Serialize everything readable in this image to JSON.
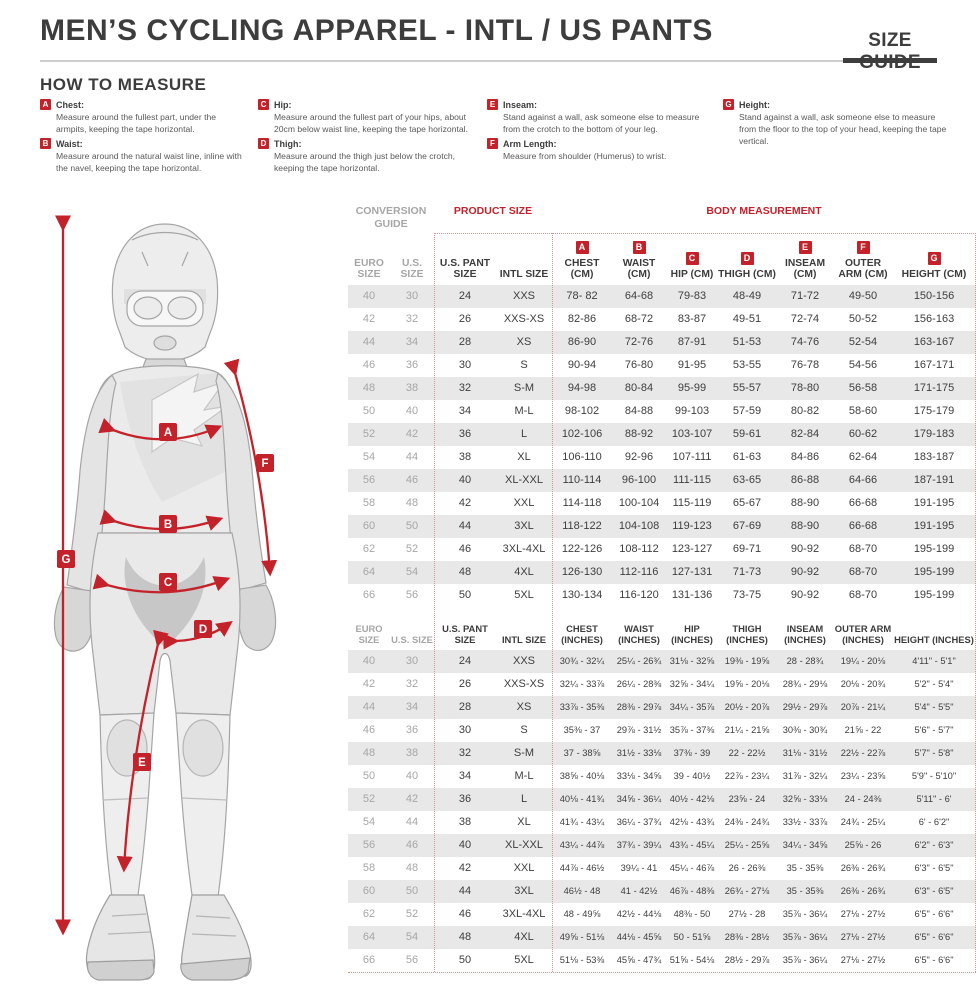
{
  "header": {
    "title": "MEN’S CYCLING APPAREL - INTL / US PANTS",
    "size_guide_label": "SIZE GUIDE"
  },
  "how_to_measure": {
    "title": "HOW TO MEASURE",
    "items": [
      {
        "letter": "A",
        "name": "Chest:",
        "text": "Measure around the fullest part, under the armpits, keeping the tape horizontal."
      },
      {
        "letter": "B",
        "name": "Waist:",
        "text": "Measure around the natural waist line, inline with the navel, keeping the tape horizontal."
      },
      {
        "letter": "C",
        "name": "Hip:",
        "text": "Measure around the fullest part of your hips, about 20cm below waist line, keeping the tape horizontal."
      },
      {
        "letter": "D",
        "name": "Thigh:",
        "text": "Measure around the thigh just below the crotch, keeping the tape horizontal."
      },
      {
        "letter": "E",
        "name": "Inseam:",
        "text": "Stand against a wall, ask someone else to measure from the crotch to the bottom of your leg."
      },
      {
        "letter": "F",
        "name": "Arm Length:",
        "text": "Measure from shoulder (Humerus) to wrist."
      },
      {
        "letter": "G",
        "name": "Height:",
        "text": "Stand against a wall, ask someone else to measure from the floor to the top of your head, keeping the tape vertical."
      }
    ]
  },
  "figure": {
    "labels": {
      "a": "A",
      "b": "B",
      "c": "C",
      "d": "D",
      "e": "E",
      "f": "F",
      "g": "G"
    }
  },
  "table": {
    "group_labels": {
      "conversion": "CONVERSION GUIDE",
      "product": "PRODUCT SIZE",
      "body": "BODY MEASUREMENT"
    },
    "cm": {
      "badges": [
        "A",
        "B",
        "C",
        "D",
        "E",
        "F",
        "G"
      ],
      "columns": [
        "EURO SIZE",
        "U.S. SIZE",
        "U.S. PANT SIZE",
        "INTL SIZE",
        "CHEST (CM)",
        "WAIST (CM)",
        "HIP (CM)",
        "THIGH (CM)",
        "INSEAM (CM)",
        "OUTER ARM (CM)",
        "HEIGHT (CM)"
      ],
      "rows": [
        [
          "40",
          "30",
          "24",
          "XXS",
          "78- 82",
          "64-68",
          "79-83",
          "48-49",
          "71-72",
          "49-50",
          "150-156"
        ],
        [
          "42",
          "32",
          "26",
          "XXS-XS",
          "82-86",
          "68-72",
          "83-87",
          "49-51",
          "72-74",
          "50-52",
          "156-163"
        ],
        [
          "44",
          "34",
          "28",
          "XS",
          "86-90",
          "72-76",
          "87-91",
          "51-53",
          "74-76",
          "52-54",
          "163-167"
        ],
        [
          "46",
          "36",
          "30",
          "S",
          "90-94",
          "76-80",
          "91-95",
          "53-55",
          "76-78",
          "54-56",
          "167-171"
        ],
        [
          "48",
          "38",
          "32",
          "S-M",
          "94-98",
          "80-84",
          "95-99",
          "55-57",
          "78-80",
          "56-58",
          "171-175"
        ],
        [
          "50",
          "40",
          "34",
          "M-L",
          "98-102",
          "84-88",
          "99-103",
          "57-59",
          "80-82",
          "58-60",
          "175-179"
        ],
        [
          "52",
          "42",
          "36",
          "L",
          "102-106",
          "88-92",
          "103-107",
          "59-61",
          "82-84",
          "60-62",
          "179-183"
        ],
        [
          "54",
          "44",
          "38",
          "XL",
          "106-110",
          "92-96",
          "107-111",
          "61-63",
          "84-86",
          "62-64",
          "183-187"
        ],
        [
          "56",
          "46",
          "40",
          "XL-XXL",
          "110-114",
          "96-100",
          "111-115",
          "63-65",
          "86-88",
          "64-66",
          "187-191"
        ],
        [
          "58",
          "48",
          "42",
          "XXL",
          "114-118",
          "100-104",
          "115-119",
          "65-67",
          "88-90",
          "66-68",
          "191-195"
        ],
        [
          "60",
          "50",
          "44",
          "3XL",
          "118-122",
          "104-108",
          "119-123",
          "67-69",
          "88-90",
          "66-68",
          "191-195"
        ],
        [
          "62",
          "52",
          "46",
          "3XL-4XL",
          "122-126",
          "108-112",
          "123-127",
          "69-71",
          "90-92",
          "68-70",
          "195-199"
        ],
        [
          "64",
          "54",
          "48",
          "4XL",
          "126-130",
          "112-116",
          "127-131",
          "71-73",
          "90-92",
          "68-70",
          "195-199"
        ],
        [
          "66",
          "56",
          "50",
          "5XL",
          "130-134",
          "116-120",
          "131-136",
          "73-75",
          "90-92",
          "68-70",
          "195-199"
        ]
      ]
    },
    "inches": {
      "columns": [
        "EURO SIZE",
        "U.S. SIZE",
        "U.S. PANT SIZE",
        "INTL SIZE",
        "CHEST (INCHES)",
        "WAIST (INCHES)",
        "HIP (INCHES)",
        "THIGH (INCHES)",
        "INSEAM (INCHES)",
        "OUTER ARM (INCHES)",
        "HEIGHT (INCHES)"
      ],
      "rows": [
        [
          "40",
          "30",
          "24",
          "XXS",
          "30¾ - 32¼",
          "25¼ - 26¾",
          "31⅛ - 32⅝",
          "19⅜ - 19⅝",
          "28 - 28¾",
          "19¼ - 20⅛",
          "4'11\" - 5'1\""
        ],
        [
          "42",
          "32",
          "26",
          "XXS-XS",
          "32¼ - 33⅞",
          "26¼ - 28⅜",
          "32⅝ - 34¼",
          "19⅝ - 20⅛",
          "28¾ - 29⅛",
          "20⅛ - 20¾",
          "5'2\" - 5'4\""
        ],
        [
          "44",
          "34",
          "28",
          "XS",
          "33⅞ - 35⅜",
          "28⅜ - 29⅞",
          "34¼ - 35⅞",
          "20½ - 20⅞",
          "29½ - 29⅞",
          "20⅞ - 21¼",
          "5'4\" - 5'5\""
        ],
        [
          "46",
          "36",
          "30",
          "S",
          "35⅜ - 37",
          "29⅞ - 31½",
          "35⅞ - 37⅜",
          "21¼ - 21⅝",
          "30⅜ - 30¾",
          "21⅝ - 22",
          "5'6\" - 5'7\""
        ],
        [
          "48",
          "38",
          "32",
          "S-M",
          "37 - 38⅝",
          "31½ - 33⅛",
          "37⅜ - 39",
          "22 - 22½",
          "31⅛ - 31½",
          "22½ - 22⅞",
          "5'7\" - 5'8\""
        ],
        [
          "50",
          "40",
          "34",
          "M-L",
          "38⅝ - 40⅛",
          "33⅛ - 34⅝",
          "39 - 40½",
          "22⅞ - 23¼",
          "31⅞ - 32¼",
          "23¼ - 23⅝",
          "5'9\" - 5'10\""
        ],
        [
          "52",
          "42",
          "36",
          "L",
          "40⅛ - 41¾",
          "34⅝ - 36¼",
          "40½ - 42⅛",
          "23⅝ - 24",
          "32⅝ - 33⅛",
          "24 - 24⅜",
          "5'11\" - 6'"
        ],
        [
          "54",
          "44",
          "38",
          "XL",
          "41¾ - 43¼",
          "36¼ - 37¾",
          "42⅛ - 43¾",
          "24⅜ - 24¾",
          "33½ - 33⅞",
          "24¾ - 25¼",
          "6' - 6'2\""
        ],
        [
          "56",
          "46",
          "40",
          "XL-XXL",
          "43¼ - 44⅞",
          "37¾ - 39¼",
          "43¾ - 45¼",
          "25¼ - 25⅝",
          "34¼ - 34⅝",
          "25⅝ - 26",
          "6'2\" - 6'3\""
        ],
        [
          "58",
          "48",
          "42",
          "XXL",
          "44⅞ - 46½",
          "39¼ - 41",
          "45¼ - 46⅞",
          "26 - 26⅜",
          "35 - 35⅜",
          "26⅜ - 26¾",
          "6'3\" - 6'5\""
        ],
        [
          "60",
          "50",
          "44",
          "3XL",
          "46½ - 48",
          "41 - 42½",
          "46⅞ - 48⅜",
          "26¾ - 27⅛",
          "35 - 35⅜",
          "26⅜ - 26¾",
          "6'3\" - 6'5\""
        ],
        [
          "62",
          "52",
          "46",
          "3XL-4XL",
          "48 - 49⅝",
          "42½ - 44⅛",
          "48⅜ - 50",
          "27½ - 28",
          "35⅞ - 36¼",
          "27⅛ - 27½",
          "6'5\" - 6'6\""
        ],
        [
          "64",
          "54",
          "48",
          "4XL",
          "49⅝ - 51⅛",
          "44⅛ - 45⅝",
          "50 - 51⅝",
          "28⅜ - 28½",
          "35⅞ - 36¼",
          "27⅛ - 27½",
          "6'5\" - 6'6\""
        ],
        [
          "66",
          "56",
          "50",
          "5XL",
          "51⅛ - 53⅜",
          "45⅝ - 47¾",
          "51⅝ - 54⅛",
          "28½ - 29⅞",
          "35⅞ - 36¼",
          "27⅛ - 27½",
          "6'5\" - 6'6\""
        ]
      ]
    }
  },
  "colors": {
    "accent_red": "#c4222a",
    "gray_text": "#a6a6a6",
    "dark_text": "#3d3d3d",
    "row_stripe": "#e8e8e8"
  }
}
